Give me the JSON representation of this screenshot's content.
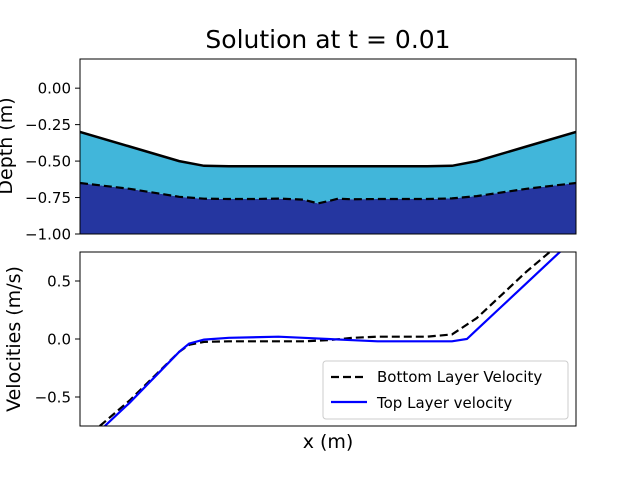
{
  "colors": {
    "upper_layer_fill": "#41B6DA",
    "lower_layer_fill": "#2536A0",
    "surface_line": "#000000",
    "interface_line": "#000000",
    "bottom_velocity_line": "#000000",
    "top_velocity_line": "#0000FF"
  },
  "chart_data": [
    {
      "type": "area",
      "title": "Solution at t = 0.01",
      "xlabel": "",
      "ylabel": "Depth (m)",
      "xlim": [
        0,
        1
      ],
      "ylim": [
        -1.0,
        0.2
      ],
      "yticks": [
        0.0,
        -0.25,
        -0.5,
        -0.75,
        -1.0
      ],
      "ytick_labels": [
        "0.00",
        "−0.25",
        "−0.50",
        "−0.75",
        "−1.00"
      ],
      "grid": false,
      "x": [
        0.0,
        0.1,
        0.2,
        0.25,
        0.3,
        0.35,
        0.4,
        0.45,
        0.48,
        0.5,
        0.52,
        0.55,
        0.6,
        0.65,
        0.7,
        0.75,
        0.8,
        0.9,
        1.0
      ],
      "series": [
        {
          "role": "surface",
          "style": "solid",
          "values": [
            -0.3,
            -0.4,
            -0.5,
            -0.532,
            -0.535,
            -0.535,
            -0.535,
            -0.535,
            -0.535,
            -0.535,
            -0.535,
            -0.535,
            -0.535,
            -0.535,
            -0.535,
            -0.532,
            -0.5,
            -0.4,
            -0.3
          ]
        },
        {
          "role": "interface",
          "style": "dashed",
          "values": [
            -0.65,
            -0.69,
            -0.745,
            -0.758,
            -0.76,
            -0.76,
            -0.757,
            -0.764,
            -0.79,
            -0.775,
            -0.758,
            -0.762,
            -0.76,
            -0.76,
            -0.76,
            -0.756,
            -0.74,
            -0.69,
            -0.65
          ]
        }
      ],
      "bottom": -1.0
    },
    {
      "type": "line",
      "title": "",
      "xlabel": "x (m)",
      "ylabel": "Velocities (m/s)",
      "xlim": [
        0,
        1
      ],
      "ylim": [
        -0.75,
        0.75
      ],
      "yticks": [
        0.5,
        0.0,
        -0.5
      ],
      "ytick_labels": [
        "0.5",
        "0.0",
        "−0.5"
      ],
      "grid": false,
      "legend_position": "lower-right",
      "series": [
        {
          "name": "Bottom Layer Velocity",
          "style": "dashed",
          "x": [
            0.04,
            0.1,
            0.15,
            0.2,
            0.22,
            0.25,
            0.3,
            0.4,
            0.45,
            0.5,
            0.55,
            0.6,
            0.7,
            0.75,
            0.8,
            0.85,
            0.9,
            0.95,
            0.97
          ],
          "values": [
            -0.75,
            -0.53,
            -0.32,
            -0.11,
            -0.05,
            -0.025,
            -0.02,
            -0.02,
            -0.02,
            -0.01,
            0.01,
            0.02,
            0.02,
            0.04,
            0.18,
            0.38,
            0.58,
            0.76,
            0.84
          ]
        },
        {
          "name": "Top Layer velocity",
          "style": "solid",
          "x": [
            0.05,
            0.1,
            0.15,
            0.2,
            0.22,
            0.25,
            0.3,
            0.4,
            0.45,
            0.5,
            0.55,
            0.6,
            0.7,
            0.75,
            0.78,
            0.8,
            0.85,
            0.9,
            0.95,
            0.97
          ],
          "values": [
            -0.75,
            -0.55,
            -0.33,
            -0.11,
            -0.04,
            -0.005,
            0.01,
            0.02,
            0.01,
            0.0,
            -0.01,
            -0.02,
            -0.02,
            -0.02,
            0.0,
            0.08,
            0.28,
            0.48,
            0.68,
            0.76
          ]
        }
      ]
    }
  ]
}
